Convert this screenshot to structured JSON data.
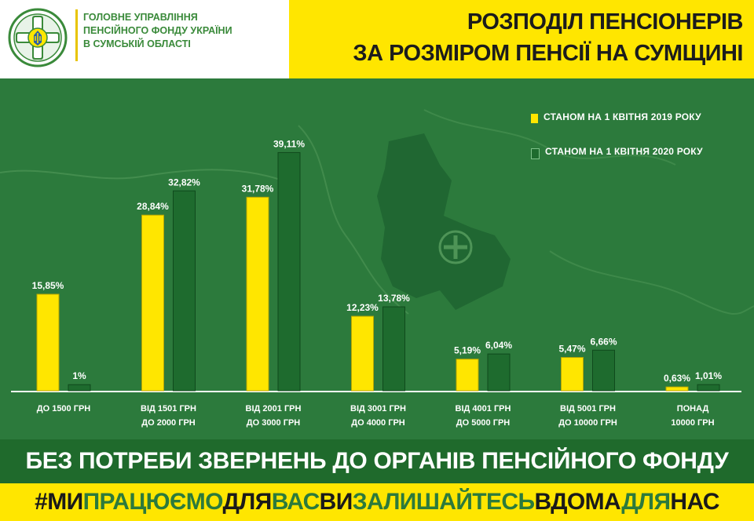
{
  "header": {
    "org_lines": [
      "ГОЛОВНЕ УПРАВЛІННЯ",
      "ПЕНСІЙНОГО ФОНДУ УКРАЇНИ",
      "В СУМСЬКІЙ ОБЛАСТІ"
    ],
    "title_lines": [
      "РОЗПОДІЛ ПЕНСІОНЕРІВ",
      "ЗА РОЗМІРОМ ПЕНСІЇ НА СУМЩИНІ"
    ]
  },
  "colors": {
    "background": "#2c7a3c",
    "yellow": "#ffe600",
    "green_bar": "#1e6b2e",
    "banner": "#1f6a2c"
  },
  "chart_data": {
    "type": "bar",
    "categories": [
      [
        "ДО 1500 ГРН"
      ],
      [
        "ВІД 1501 ГРН",
        "ДО 2000 ГРН"
      ],
      [
        "ВІД 2001 ГРН",
        "ДО 3000 ГРН"
      ],
      [
        "ВІД 3001 ГРН",
        "ДО 4000 ГРН"
      ],
      [
        "ВІД 4001 ГРН",
        "ДО 5000 ГРН"
      ],
      [
        "ВІД 5001 ГРН",
        "ДО 10000 ГРН"
      ],
      [
        "ПОНАД",
        "10000 ГРН"
      ]
    ],
    "series": [
      {
        "name": "СТАНОМ НА 1 КВІТНЯ  2019  РОКУ",
        "color": "#ffe600",
        "values": [
          15.85,
          28.84,
          31.78,
          12.23,
          5.19,
          5.47,
          0.63
        ],
        "labels": [
          "15,85%",
          "28,84%",
          "31,78%",
          "12,23%",
          "5,19%",
          "5,47%",
          "0,63%"
        ]
      },
      {
        "name": "СТАНОМ НА 1 КВІТНЯ  2020  РОКУ",
        "color": "#1e6b2e",
        "values": [
          1,
          32.82,
          39.11,
          13.78,
          6.04,
          6.66,
          1.01
        ],
        "labels": [
          "1%",
          "32,82%",
          "39,11%",
          "13,78%",
          "6,04%",
          "6,66%",
          "1,01%"
        ]
      }
    ],
    "ylim": [
      0,
      42
    ],
    "grid": false,
    "legend_position": "top-right"
  },
  "banner": {
    "text": "БЕЗ ПОТРЕБИ ЗВЕРНЕНЬ ДО ОРГАНІВ ПЕНСІЙНОГО ФОНДУ"
  },
  "hashtag": {
    "words": [
      {
        "text": "#МИ",
        "style": "dark"
      },
      {
        "text": "ПРАЦЮЄМО",
        "style": "green"
      },
      {
        "text": "ДЛЯ",
        "style": "dark"
      },
      {
        "text": "ВАС",
        "style": "green"
      },
      {
        "text": "ВИ",
        "style": "dark"
      },
      {
        "text": "ЗАЛИШАЙТЕСЬ",
        "style": "green"
      },
      {
        "text": "ВДОМА",
        "style": "dark"
      },
      {
        "text": "ДЛЯ",
        "style": "green"
      },
      {
        "text": "НАС",
        "style": "dark"
      }
    ]
  }
}
